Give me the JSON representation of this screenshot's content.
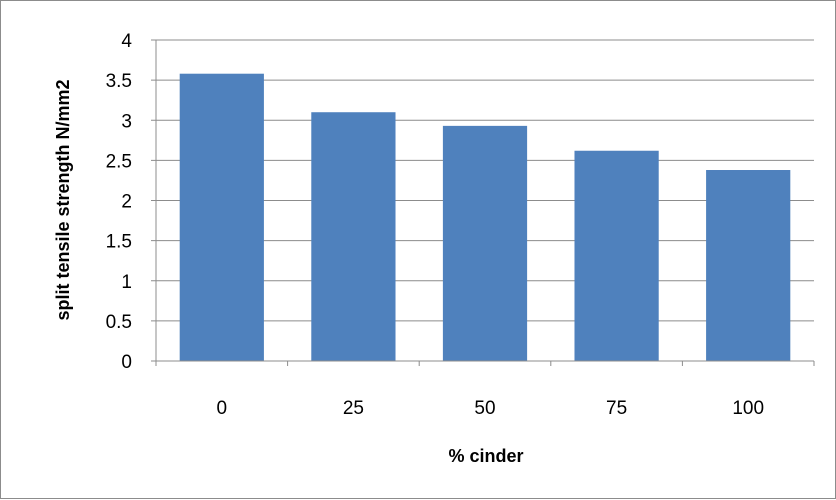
{
  "chart_data": {
    "type": "bar",
    "title": "",
    "xlabel": "% cinder",
    "ylabel": "split tensile strength  N/mm2",
    "categories": [
      "0",
      "25",
      "50",
      "75",
      "100"
    ],
    "values": [
      3.58,
      3.1,
      2.93,
      2.62,
      2.38
    ],
    "ylim": [
      0,
      4
    ],
    "y_ticks": [
      "0",
      "0.5",
      "1",
      "1.5",
      "2",
      "2.5",
      "3",
      "3.5",
      "4"
    ],
    "grid": true,
    "legend": "none",
    "bar_color": "#4f81bd"
  }
}
